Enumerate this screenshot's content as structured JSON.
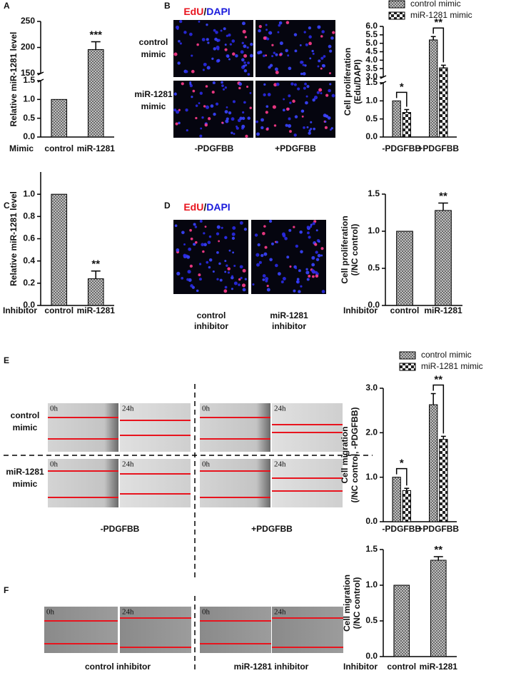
{
  "panel_labels": [
    "A",
    "B",
    "C",
    "D",
    "E",
    "F"
  ],
  "edu_title": {
    "edu": "EdU",
    "sep": "/",
    "dapi": "DAPI"
  },
  "panel_B_images": {
    "rows": [
      [
        "control",
        "mimic"
      ],
      [
        "miR-1281",
        "mimic"
      ]
    ],
    "columns": [
      "-PDGFBB",
      "+PDGFBB"
    ]
  },
  "panel_D_images": {
    "captions": [
      [
        "control",
        "inhibitor"
      ],
      [
        "miR-1281",
        "inhibitor"
      ]
    ]
  },
  "panel_E_images": {
    "rows": [
      [
        "control",
        "mimic"
      ],
      [
        "miR-1281",
        "mimic"
      ]
    ],
    "columns": [
      "-PDGFBB",
      "+PDGFBB"
    ],
    "time_labels": [
      "0h",
      "24h"
    ]
  },
  "panel_F_images": {
    "captions": [
      "control inhibitor",
      "miR-1281 inhibitor"
    ],
    "time_labels": [
      "0h",
      "24h"
    ]
  },
  "chart_data": [
    {
      "type": "bar",
      "ylabel": [
        "Relative miR-1281 level"
      ],
      "xlabel": "Mimic",
      "categories": [
        "control",
        "miR-1281"
      ],
      "values": [
        1,
        196
      ],
      "errors": [
        null,
        15
      ],
      "significance": [
        null,
        "***"
      ],
      "pattern": "crosshatch",
      "ylim": [
        0,
        250
      ],
      "axis_break": [
        1.5,
        150
      ],
      "yticks": [
        {
          "value": 0,
          "label": "0.0"
        },
        0.5,
        {
          "value": 1,
          "label": "1.0"
        },
        1.5,
        150,
        200,
        250
      ]
    },
    {
      "type": "grouped_bar",
      "ylabel": [
        "Cell proliferation",
        "(Edu/DAPI)"
      ],
      "categories": [
        "-PDGFBB",
        "+PDGFBB"
      ],
      "series": [
        {
          "name": "control mimic",
          "pattern": "crosshatch",
          "values": [
            1,
            5.2
          ],
          "errors": [
            null,
            0.2
          ]
        },
        {
          "name": "miR-1281 mimic",
          "pattern": "checker",
          "values": [
            0.68,
            3.55
          ],
          "errors": [
            0.08,
            0.15
          ]
        }
      ],
      "significance": [
        "*",
        "**"
      ],
      "ylim": [
        0,
        6
      ],
      "axis_break": [
        1.5,
        3
      ],
      "yticks": [
        {
          "value": 0,
          "label": "0.0"
        },
        0.5,
        {
          "value": 1,
          "label": "1.0"
        },
        1.5,
        {
          "value": 3,
          "label": "3.0"
        },
        3.5,
        {
          "value": 4,
          "label": "4.0"
        },
        4.5,
        {
          "value": 5,
          "label": "5.0"
        },
        5.5,
        {
          "value": 6,
          "label": "6.0"
        }
      ]
    },
    {
      "type": "bar",
      "ylabel": [
        "Relative miR-1281 level"
      ],
      "xlabel": "Inhibitor",
      "categories": [
        "control",
        "miR-1281"
      ],
      "values": [
        1,
        0.24
      ],
      "errors": [
        null,
        0.07
      ],
      "significance": [
        null,
        "**"
      ],
      "pattern": "crosshatch",
      "ylim": [
        0,
        1.2
      ],
      "yticks": [
        {
          "value": 0,
          "label": "0.0"
        },
        0.2,
        0.4,
        0.6,
        0.8,
        {
          "value": 1,
          "label": "1.0"
        }
      ]
    },
    {
      "type": "bar",
      "ylabel": [
        "Cell proliferation",
        "(/NC control)"
      ],
      "xlabel": "Inhibitor",
      "categories": [
        "control",
        "miR-1281"
      ],
      "values": [
        1,
        1.28
      ],
      "errors": [
        null,
        0.1
      ],
      "significance": [
        null,
        "**"
      ],
      "pattern": "crosshatch",
      "ylim": [
        0,
        1.5
      ],
      "yticks": [
        {
          "value": 0,
          "label": "0.0"
        },
        0.5,
        {
          "value": 1,
          "label": "1.0"
        },
        1.5
      ]
    },
    {
      "type": "grouped_bar",
      "ylabel": [
        "Cell migration",
        "(/NC control, -PDGFBB)"
      ],
      "categories": [
        "-PDGFBB",
        "+PDGFBB"
      ],
      "series": [
        {
          "name": "control mimic",
          "pattern": "crosshatch",
          "values": [
            1,
            2.63
          ],
          "errors": [
            null,
            0.25
          ]
        },
        {
          "name": "miR-1281 mimic",
          "pattern": "checker",
          "values": [
            0.7,
            1.85
          ],
          "errors": [
            0.05,
            0.07
          ]
        }
      ],
      "significance": [
        "*",
        "**"
      ],
      "ylim": [
        0,
        3
      ],
      "yticks": [
        {
          "value": 0,
          "label": "0.0"
        },
        {
          "value": 1,
          "label": "1.0"
        },
        {
          "value": 2,
          "label": "2.0"
        },
        {
          "value": 3,
          "label": "3.0"
        }
      ]
    },
    {
      "type": "bar",
      "ylabel": [
        "Cell migration",
        "(/NC control)"
      ],
      "xlabel": "Inhibitor",
      "categories": [
        "control",
        "miR-1281"
      ],
      "values": [
        1,
        1.35
      ],
      "errors": [
        null,
        0.05
      ],
      "significance": [
        null,
        "**"
      ],
      "pattern": "crosshatch",
      "ylim": [
        0,
        1.5
      ],
      "yticks": [
        {
          "value": 0,
          "label": "0.0"
        },
        0.5,
        {
          "value": 1,
          "label": "1.0"
        },
        1.5
      ]
    }
  ]
}
